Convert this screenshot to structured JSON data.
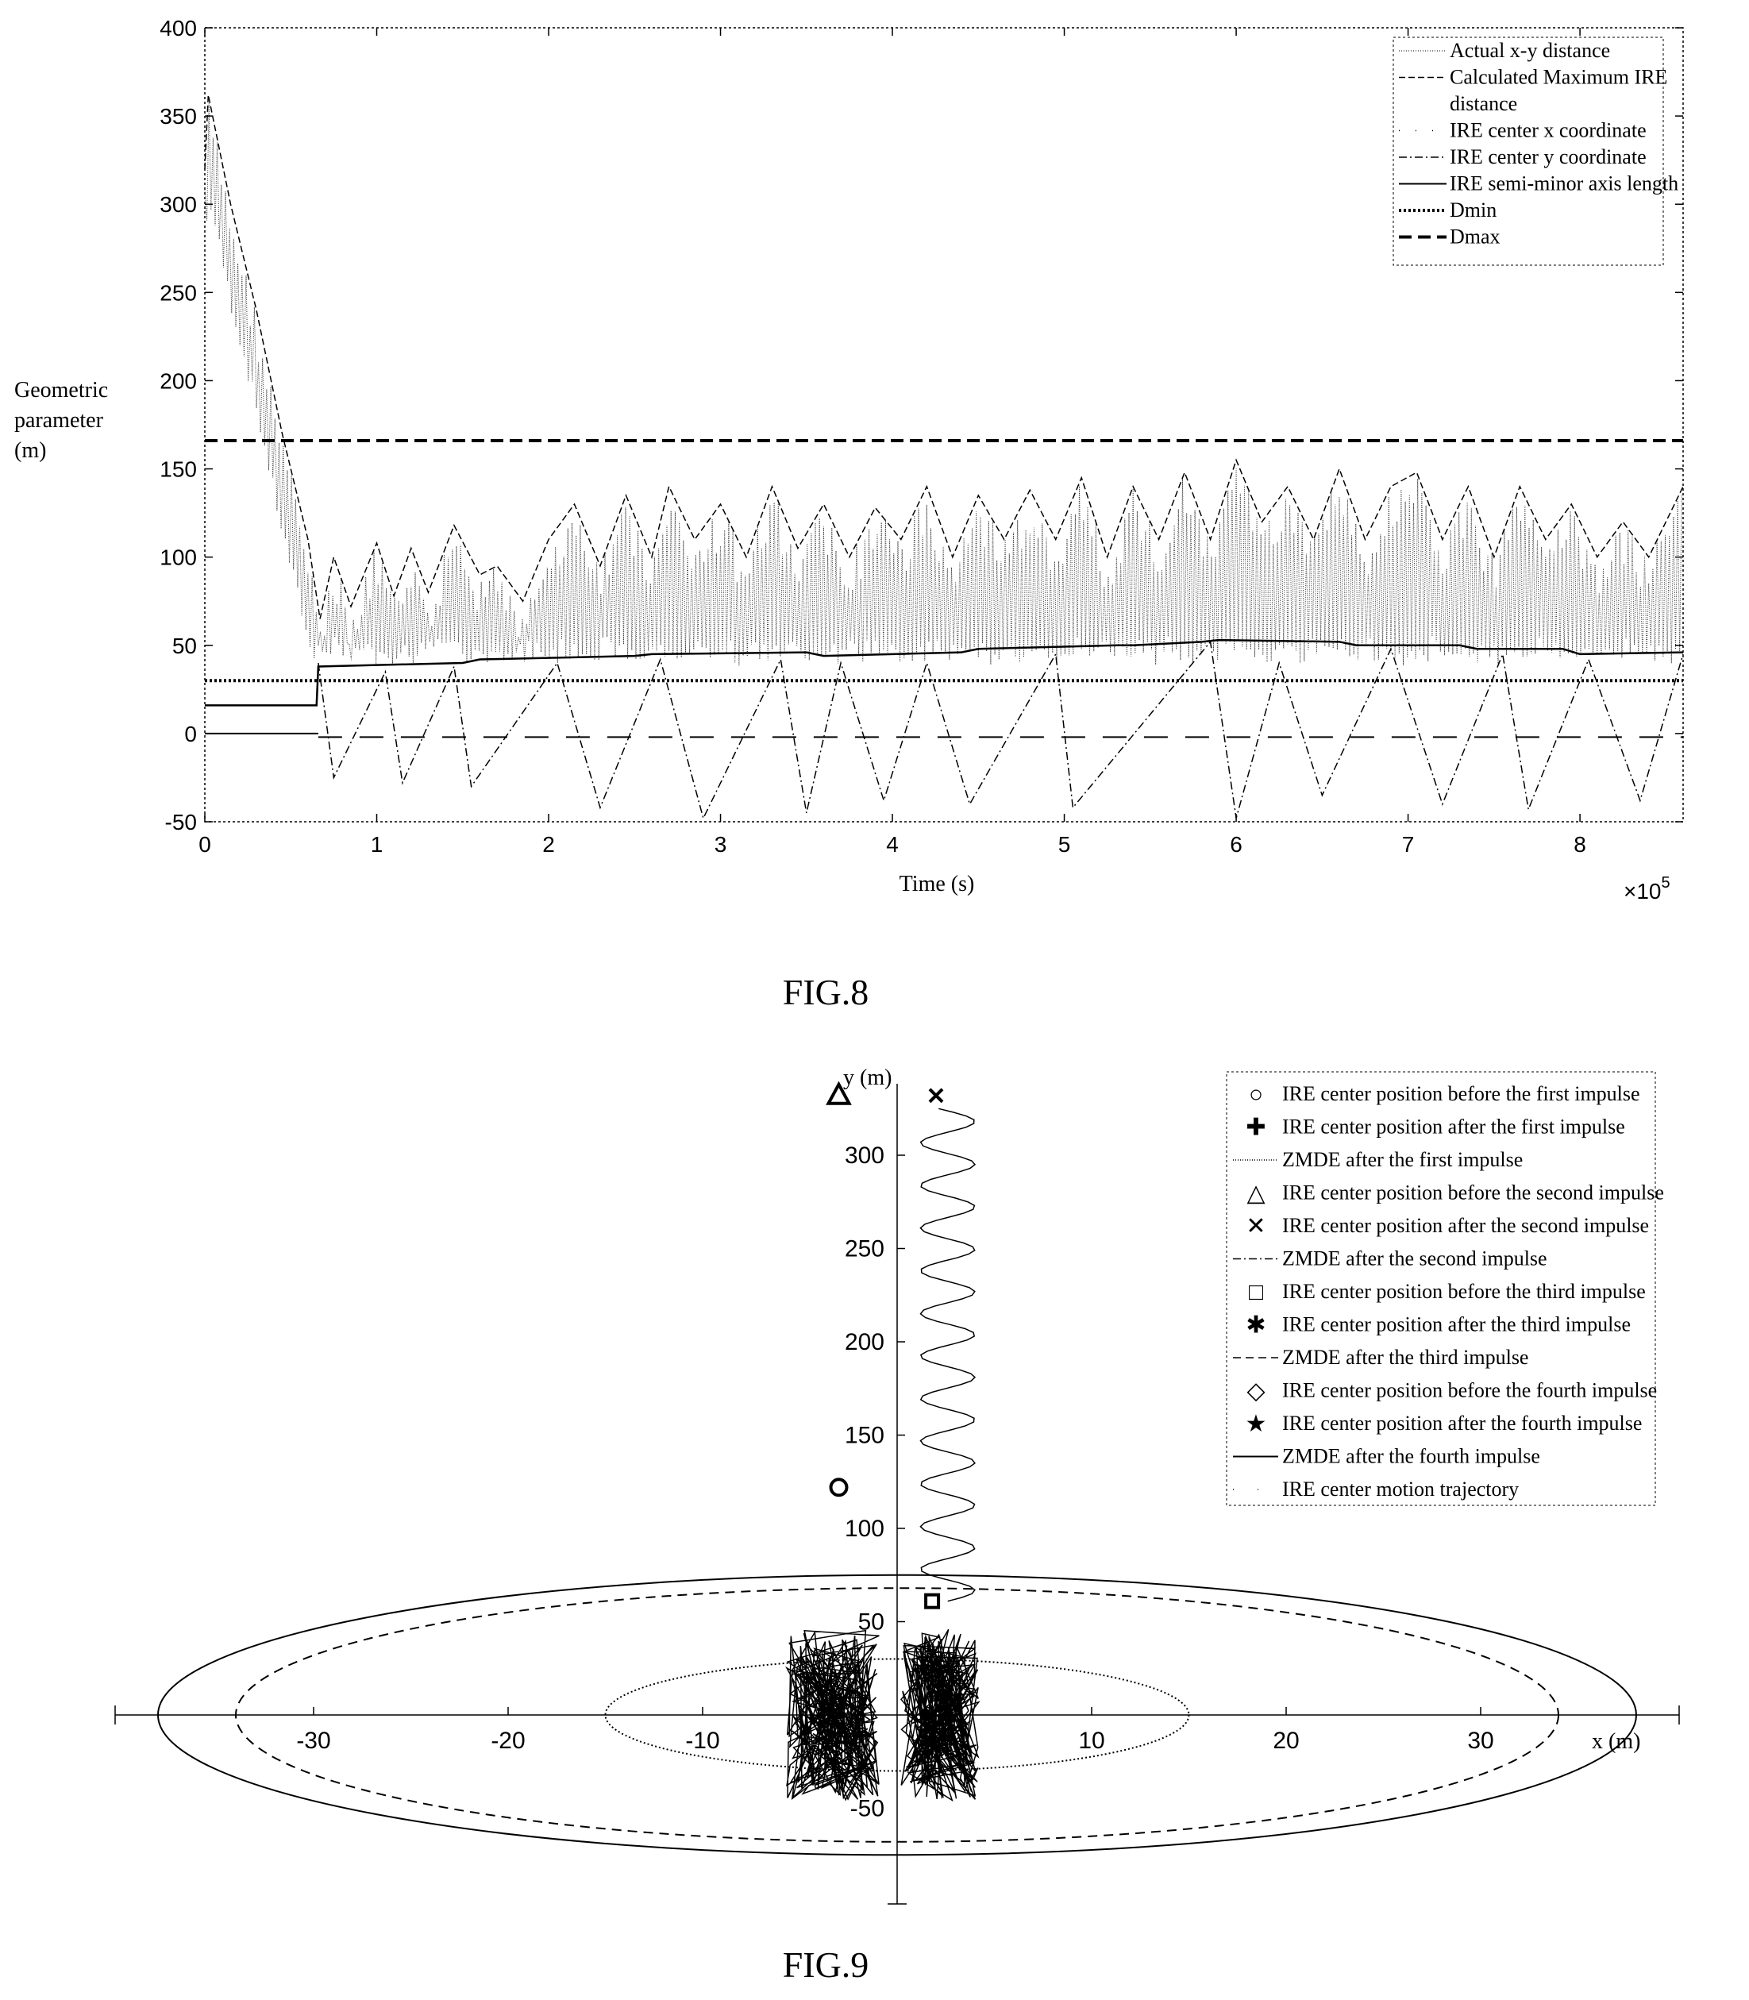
{
  "chart_data": [
    {
      "type": "line",
      "caption": "FIG.8",
      "xlabel": "Time (s)",
      "ylabel": [
        "Geometric",
        "parameter",
        "(m)"
      ],
      "x_exponent": "×10^5",
      "x_multiplier_base": "×10",
      "x_multiplier_exp": "5",
      "xlim": [
        0,
        8.6
      ],
      "ylim": [
        -50,
        400
      ],
      "xticks": [
        0,
        1,
        2,
        3,
        4,
        5,
        6,
        7,
        8
      ],
      "yticks": [
        -50,
        0,
        50,
        100,
        150,
        200,
        250,
        300,
        350,
        400
      ],
      "legend": {
        "placement": "top-right",
        "entries": [
          {
            "label": "Actual x-y distance",
            "style": "dotted-thin"
          },
          {
            "label": "Calculated   Maximum   IRE",
            "style": "dashed-thin"
          },
          {
            "label": "distance",
            "style": "none"
          },
          {
            "label": "IRE center x coordinate",
            "style": "dot"
          },
          {
            "label": "IRE center y coordinate",
            "style": "dashdot"
          },
          {
            "label": "IRE semi-minor axis length",
            "style": "solid"
          },
          {
            "label": "Dmin",
            "style": "dotted-thick"
          },
          {
            "label": "Dmax",
            "style": "dashed-thick"
          }
        ]
      },
      "series": [
        {
          "name": "Dmin",
          "y": 30
        },
        {
          "name": "Dmax",
          "y": 166
        },
        {
          "name": "Calculated Maximum IRE distance",
          "x": [
            0,
            0.02,
            0.15,
            0.3,
            0.45,
            0.6,
            0.67,
            0.75,
            0.85,
            1.0,
            1.1,
            1.2,
            1.3,
            1.45,
            1.6,
            1.7,
            1.85,
            2.0,
            2.15,
            2.3,
            2.45,
            2.6,
            2.7,
            2.85,
            3.0,
            3.15,
            3.3,
            3.45,
            3.6,
            3.75,
            3.9,
            4.05,
            4.2,
            4.35,
            4.5,
            4.65,
            4.8,
            4.95,
            5.1,
            5.25,
            5.4,
            5.55,
            5.7,
            5.85,
            6.0,
            6.15,
            6.3,
            6.45,
            6.6,
            6.75,
            6.9,
            7.05,
            7.2,
            7.35,
            7.5,
            7.65,
            7.8,
            7.95,
            8.1,
            8.25,
            8.4,
            8.6
          ],
          "y": [
            320,
            362,
            300,
            240,
            170,
            110,
            65,
            100,
            72,
            108,
            78,
            105,
            80,
            118,
            90,
            95,
            75,
            110,
            130,
            95,
            135,
            100,
            140,
            110,
            130,
            100,
            140,
            105,
            130,
            100,
            128,
            110,
            140,
            100,
            135,
            110,
            138,
            110,
            145,
            100,
            140,
            110,
            148,
            110,
            155,
            120,
            140,
            110,
            150,
            110,
            140,
            148,
            110,
            140,
            100,
            140,
            110,
            130,
            100,
            120,
            100,
            140
          ]
        },
        {
          "name": "IRE semi-minor axis length",
          "x": [
            0,
            0.65,
            0.66,
            1.5,
            1.6,
            2.5,
            2.6,
            3.5,
            3.6,
            4.4,
            4.5,
            5.3,
            5.4,
            5.8,
            5.9,
            6.6,
            6.7,
            7.3,
            7.4,
            7.9,
            8.0,
            8.6
          ],
          "y": [
            16,
            16,
            38,
            40,
            42,
            44,
            45,
            46,
            44,
            46,
            48,
            50,
            50,
            52,
            53,
            52,
            50,
            50,
            48,
            48,
            45,
            46
          ]
        },
        {
          "name": "IRE center y coordinate",
          "x": [
            0.66,
            0.75,
            1.05,
            1.15,
            1.45,
            1.55,
            2.05,
            2.3,
            2.65,
            2.9,
            3.35,
            3.5,
            3.7,
            3.95,
            4.2,
            4.45,
            4.95,
            5.05,
            5.85,
            6.0,
            6.25,
            6.5,
            6.9,
            7.2,
            7.55,
            7.7,
            8.05,
            8.35,
            8.6
          ],
          "y": [
            40,
            -25,
            35,
            -28,
            38,
            -30,
            40,
            -42,
            42,
            -48,
            42,
            -45,
            40,
            -38,
            40,
            -40,
            45,
            -42,
            52,
            -48,
            40,
            -35,
            48,
            -40,
            45,
            -43,
            42,
            -38,
            45
          ]
        },
        {
          "name": "IRE center x coordinate",
          "y": 0
        }
      ]
    },
    {
      "type": "scatter",
      "caption": "FIG.9",
      "xlabel": "x (m)",
      "ylabel": "y (m)",
      "xlim": [
        -40,
        40
      ],
      "ylim": [
        -100,
        330
      ],
      "xticks": [
        -30,
        -20,
        -10,
        10,
        20,
        30
      ],
      "yticks": [
        50,
        100,
        150,
        200,
        250,
        300
      ],
      "bottom_tick_label": "-50",
      "legend": {
        "placement": "top-right",
        "entries": [
          {
            "marker": "○",
            "label": "IRE center position before the first impulse"
          },
          {
            "marker": "✚",
            "label": "IRE center position after the first impulse"
          },
          {
            "marker": "line-dotted",
            "label": "ZMDE after the first impulse"
          },
          {
            "marker": "△",
            "label": "IRE center position before the second impulse"
          },
          {
            "marker": "✕",
            "label": "IRE center position after the second impulse"
          },
          {
            "marker": "line-dashdot",
            "label": "ZMDE after the second impulse"
          },
          {
            "marker": "□",
            "label": "IRE center position before the third impulse"
          },
          {
            "marker": "✱",
            "label": "IRE center position after the third impulse"
          },
          {
            "marker": "line-dashed",
            "label": "ZMDE after the third impulse"
          },
          {
            "marker": "◇",
            "label": "IRE center position before the fourth impulse"
          },
          {
            "marker": "★",
            "label": "IRE center position after the fourth impulse"
          },
          {
            "marker": "line-solid",
            "label": "ZMDE after the fourth impulse"
          },
          {
            "marker": "line-dot",
            "label": "IRE center motion trajectory"
          }
        ]
      },
      "points": [
        {
          "name": "IRE center position before the first impulse",
          "x": -3,
          "y": 122
        },
        {
          "name": "IRE center position before the second impulse",
          "x": -3,
          "y": 332
        },
        {
          "name": "IRE center position after the second impulse",
          "x": 2,
          "y": 332
        },
        {
          "name": "IRE center position before the third impulse",
          "x": 1.8,
          "y": 61
        }
      ],
      "ellipses": [
        {
          "name": "ZMDE after the first impulse",
          "cx": 0,
          "cy": 0,
          "a": 15,
          "b": 30
        },
        {
          "name": "ZMDE after the third impulse",
          "cx": 0,
          "cy": 0,
          "a": 34,
          "b": 68
        },
        {
          "name": "ZMDE after the fourth impulse",
          "cx": 0,
          "cy": 0,
          "a": 38,
          "b": 75
        }
      ]
    }
  ]
}
